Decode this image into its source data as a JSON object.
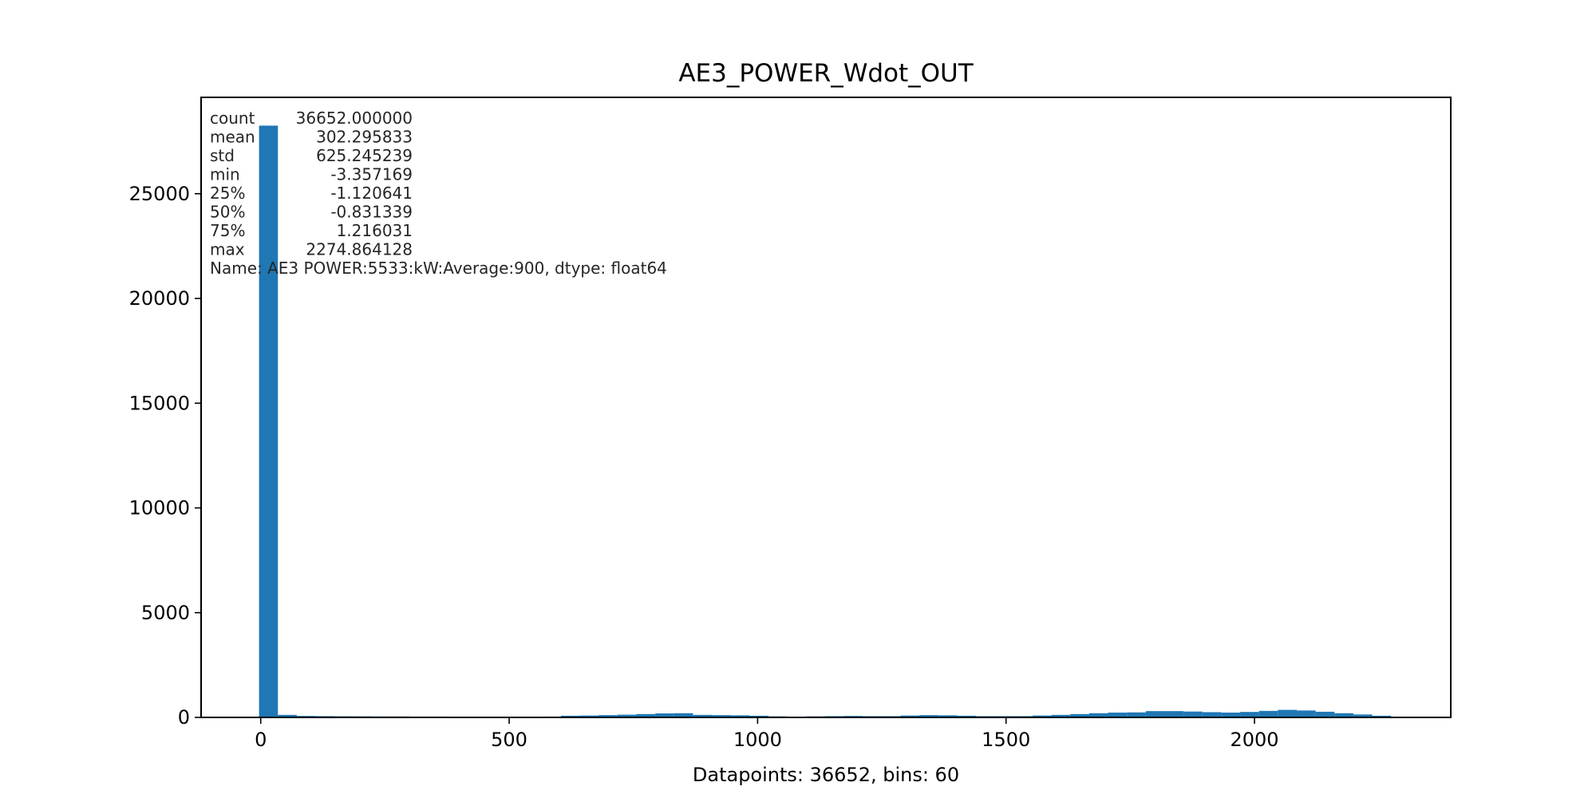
{
  "chart_data": {
    "type": "bar",
    "title": "AE3_POWER_Wdot_OUT",
    "xlabel": "Datapoints: 36652, bins: 60",
    "ylabel": "",
    "x_range": [
      -120,
      2395
    ],
    "ylim": [
      0,
      29600
    ],
    "x_ticks": [
      0,
      500,
      1000,
      1500,
      2000
    ],
    "y_ticks": [
      0,
      5000,
      10000,
      15000,
      20000,
      25000
    ],
    "bin_start": -3.357169,
    "bin_width": 37.9704,
    "bar_color": "#1f77b4",
    "values": [
      28250,
      120,
      70,
      60,
      55,
      50,
      45,
      45,
      40,
      40,
      35,
      35,
      35,
      35,
      35,
      40,
      80,
      90,
      110,
      130,
      160,
      190,
      200,
      120,
      110,
      100,
      80,
      50,
      20,
      50,
      60,
      70,
      60,
      60,
      90,
      110,
      100,
      80,
      60,
      60,
      60,
      90,
      120,
      160,
      200,
      230,
      240,
      300,
      300,
      280,
      250,
      230,
      260,
      310,
      360,
      330,
      270,
      200,
      140,
      80
    ],
    "stats_lines": [
      {
        "label": "count",
        "value": "36652.000000"
      },
      {
        "label": "mean",
        "value": "302.295833"
      },
      {
        "label": "std",
        "value": "625.245239"
      },
      {
        "label": "min",
        "value": "-3.357169"
      },
      {
        "label": "25%",
        "value": "-1.120641"
      },
      {
        "label": "50%",
        "value": "-0.831339"
      },
      {
        "label": "75%",
        "value": "1.216031"
      },
      {
        "label": "max",
        "value": "2274.864128"
      }
    ],
    "stats_footer": "Name: AE3 POWER:5533:kW:Average:900, dtype: float64",
    "grid": false,
    "legend": false
  }
}
